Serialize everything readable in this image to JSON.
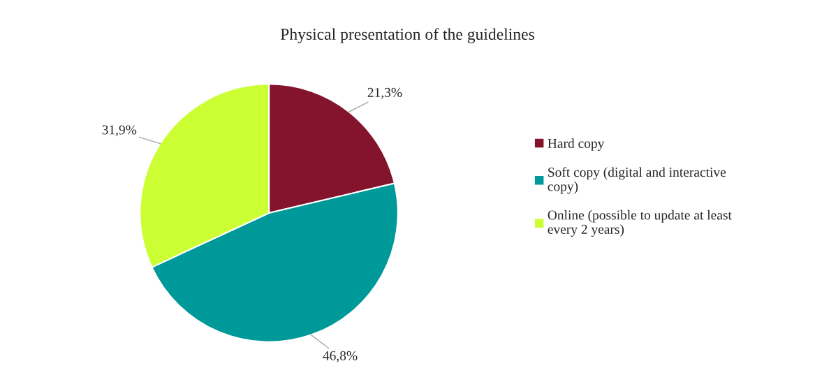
{
  "chart_data": {
    "type": "pie",
    "title": "Physical presentation of the guidelines",
    "categories": [
      "Hard copy",
      "Soft copy (digital and interactive copy)",
      "Online (possible to update at least every 2 years)"
    ],
    "values": [
      21.3,
      46.8,
      31.9
    ],
    "value_labels": [
      "21,3%",
      "46,8%",
      "31,9%"
    ],
    "colors": [
      "#84132c",
      "#009999",
      "#ccff33"
    ],
    "legend": "right"
  }
}
